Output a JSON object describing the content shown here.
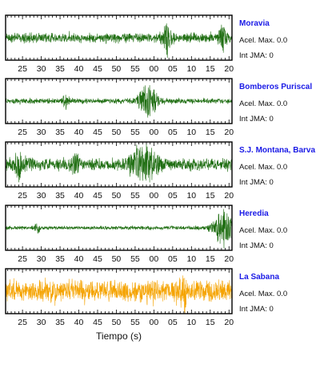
{
  "chart_data": [
    {
      "type": "line",
      "station": "Moravia",
      "info": {
        "acel_label": "Acel. Max. 0.0",
        "jma_label": "Int JMA: 0"
      },
      "color": "#1f6e12",
      "x_ticks": [
        "25",
        "30",
        "35",
        "40",
        "45",
        "50",
        "55",
        "00",
        "05",
        "10",
        "15",
        "20"
      ],
      "xlim": [
        20.5,
        80.8
      ],
      "noise_amplitude": 0.22,
      "bursts": [
        {
          "t": 63.5,
          "amp": 0.7,
          "width": 1.2
        },
        {
          "t": 78.5,
          "amp": 0.55,
          "width": 1.0
        }
      ]
    },
    {
      "type": "line",
      "station": "Bomberos Puriscal",
      "info": {
        "acel_label": "Acel. Max. 0.0",
        "jma_label": "Int JMA: 0"
      },
      "color": "#1f6e12",
      "x_ticks": [
        "25",
        "30",
        "35",
        "40",
        "45",
        "50",
        "55",
        "00",
        "05",
        "10",
        "15",
        "20"
      ],
      "xlim": [
        20.5,
        80.8
      ],
      "noise_amplitude": 0.12,
      "bursts": [
        {
          "t": 36.5,
          "amp": 0.28,
          "width": 1.0
        },
        {
          "t": 58.5,
          "amp": 0.85,
          "width": 2.2
        }
      ]
    },
    {
      "type": "line",
      "station": "S.J. Montana, Barva",
      "info": {
        "acel_label": "Acel. Max. 0.0",
        "jma_label": "Int JMA: 0"
      },
      "color": "#1f6e12",
      "x_ticks": [
        "25",
        "30",
        "35",
        "40",
        "45",
        "50",
        "55",
        "00",
        "05",
        "10",
        "15",
        "20"
      ],
      "xlim": [
        20.5,
        80.8
      ],
      "noise_amplitude": 0.28,
      "bursts": [
        {
          "t": 24.0,
          "amp": 0.5,
          "width": 1.5
        },
        {
          "t": 57.0,
          "amp": 0.75,
          "width": 3.5
        },
        {
          "t": 39.0,
          "amp": 0.35,
          "width": 1.2
        }
      ]
    },
    {
      "type": "line",
      "station": "Heredia",
      "info": {
        "acel_label": "Acel. Max. 0.0",
        "jma_label": "Int JMA: 0"
      },
      "color": "#1f6e12",
      "x_ticks": [
        "25",
        "30",
        "35",
        "40",
        "45",
        "50",
        "55",
        "00",
        "05",
        "10",
        "15",
        "20"
      ],
      "xlim": [
        20.5,
        80.8
      ],
      "noise_amplitude": 0.08,
      "bursts": [
        {
          "t": 29.0,
          "amp": 0.22,
          "width": 0.8
        },
        {
          "t": 78.5,
          "amp": 0.9,
          "width": 2.5
        }
      ]
    },
    {
      "type": "line",
      "station": "La Sabana",
      "info": {
        "acel_label": "Acel. Max. 0.0",
        "jma_label": "Int JMA: 0"
      },
      "color": "#f5a300",
      "x_ticks": [
        "25",
        "30",
        "35",
        "40",
        "45",
        "50",
        "55",
        "00",
        "05",
        "10",
        "15",
        "20"
      ],
      "xlim": [
        20.5,
        80.8
      ],
      "xlabel": "Tiempo (s)",
      "noise_amplitude": 0.5,
      "bursts": [
        {
          "t": 68.0,
          "amp": 0.85,
          "width": 0.8
        }
      ]
    }
  ],
  "style": {
    "station_name_color": "#1a1ae6",
    "frame_color": "#000000"
  }
}
